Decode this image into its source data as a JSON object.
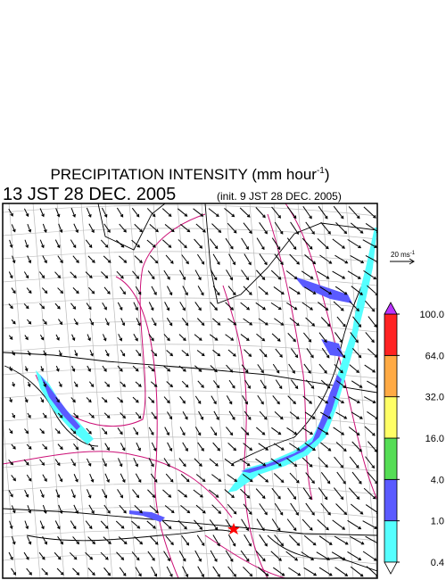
{
  "title": {
    "main": "PRECIPITATION INTENSITY (mm hour",
    "sup": "-1",
    "close": ")"
  },
  "valid_time": "13 JST 28 DEC. 2005",
  "init_time": "(init. 9 JST 28 DEC. 2005)",
  "wind_scale": {
    "label": "20 ms",
    "sup": "-1"
  },
  "colorbar": {
    "ticks": [
      {
        "value": 0.4,
        "label": "0.4"
      },
      {
        "value": 1,
        "label": "1.0"
      },
      {
        "value": 4,
        "label": "4.0"
      },
      {
        "value": 16,
        "label": "16.0"
      },
      {
        "value": 32,
        "label": "32.0"
      },
      {
        "value": 64,
        "label": "64.0"
      },
      {
        "value": 100,
        "label": "100.0"
      }
    ],
    "colors": [
      "#55ffff",
      "#5a5aff",
      "#55dd55",
      "#ffff66",
      "#ffaa44",
      "#ff2222"
    ],
    "over_color": "#bb33ff",
    "under_color": "#ffffff"
  }
}
